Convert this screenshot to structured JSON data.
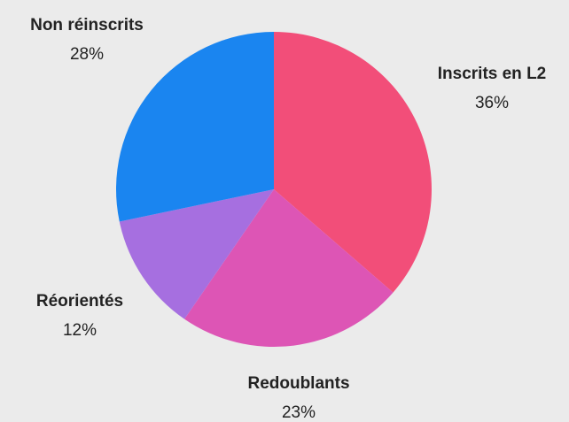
{
  "chart_data": {
    "type": "pie",
    "categories": [
      "Inscrits en L2",
      "Redoublants",
      "Réorientés",
      "Non réinscrits"
    ],
    "values": [
      36,
      23,
      12,
      28
    ],
    "value_labels": [
      "36%",
      "23%",
      "12%",
      "28%"
    ],
    "colors": [
      "#f24e79",
      "#dd55b5",
      "#a66fe0",
      "#1a85f0"
    ]
  }
}
